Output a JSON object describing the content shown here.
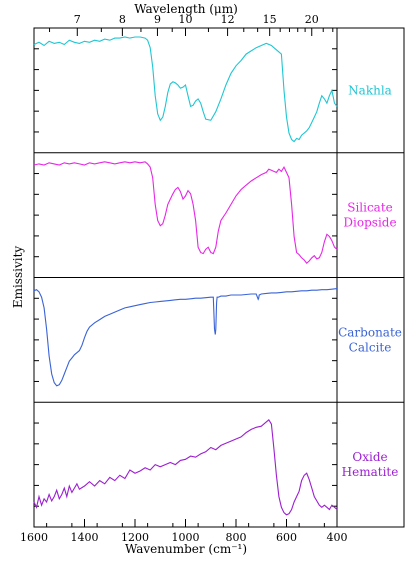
{
  "chart_data": {
    "type": "line",
    "title": "",
    "xlabel": "Wavenumber (cm⁻¹)",
    "ylabel": "Emissivity",
    "top_axis_label": "Wavelength (μm)",
    "xlim": [
      1600,
      400
    ],
    "x_ticks": [
      1600,
      1400,
      1200,
      1000,
      800,
      600,
      400
    ],
    "x_tick_labels": [
      "1600",
      "1400",
      "1200",
      "1000",
      "800",
      "600",
      "400"
    ],
    "top_ticks_um": [
      7,
      8,
      9,
      10,
      12,
      15,
      20
    ],
    "top_tick_labels": [
      "7",
      "8",
      "9",
      "10",
      "12",
      "15",
      "20"
    ],
    "grid": false,
    "legend": "right column labels",
    "series": [
      {
        "name": "Nakhla",
        "label_lines": [
          "Nakhla"
        ],
        "color": "#1fc6d3",
        "x": [
          1600,
          1580,
          1560,
          1540,
          1520,
          1500,
          1480,
          1460,
          1440,
          1420,
          1400,
          1380,
          1360,
          1340,
          1320,
          1300,
          1280,
          1260,
          1240,
          1220,
          1200,
          1180,
          1160,
          1150,
          1140,
          1130,
          1120,
          1110,
          1100,
          1090,
          1080,
          1070,
          1060,
          1050,
          1040,
          1030,
          1020,
          1010,
          1000,
          990,
          980,
          970,
          960,
          950,
          940,
          930,
          920,
          900,
          880,
          860,
          840,
          820,
          800,
          780,
          760,
          740,
          720,
          700,
          680,
          660,
          650,
          640,
          630,
          620,
          610,
          600,
          590,
          580,
          570,
          560,
          550,
          540,
          530,
          520,
          510,
          500,
          490,
          480,
          470,
          460,
          450,
          440,
          430,
          420,
          410,
          400
        ],
        "values": [
          0.93,
          0.95,
          0.92,
          0.96,
          0.94,
          0.95,
          0.93,
          0.97,
          0.95,
          0.94,
          0.96,
          0.95,
          0.97,
          0.96,
          0.98,
          0.97,
          0.99,
          0.99,
          1.0,
          0.99,
          1.0,
          1.0,
          0.99,
          0.97,
          0.9,
          0.72,
          0.45,
          0.28,
          0.22,
          0.25,
          0.35,
          0.48,
          0.56,
          0.58,
          0.57,
          0.55,
          0.52,
          0.53,
          0.55,
          0.45,
          0.35,
          0.36,
          0.4,
          0.42,
          0.38,
          0.3,
          0.23,
          0.22,
          0.3,
          0.42,
          0.55,
          0.66,
          0.73,
          0.78,
          0.84,
          0.87,
          0.9,
          0.92,
          0.94,
          0.92,
          0.9,
          0.88,
          0.86,
          0.84,
          0.5,
          0.25,
          0.1,
          0.04,
          0.02,
          0.05,
          0.04,
          0.08,
          0.1,
          0.12,
          0.15,
          0.2,
          0.25,
          0.3,
          0.38,
          0.45,
          0.42,
          0.38,
          0.45,
          0.5,
          0.38,
          0.35
        ],
        "ylim": [
          0,
          1
        ]
      },
      {
        "name": "Silicate Diopside",
        "label_lines": [
          "Silicate",
          "Diopside"
        ],
        "color": "#e627e6",
        "x": [
          1600,
          1580,
          1560,
          1540,
          1520,
          1500,
          1480,
          1460,
          1440,
          1420,
          1400,
          1380,
          1360,
          1340,
          1320,
          1300,
          1280,
          1260,
          1240,
          1220,
          1200,
          1180,
          1160,
          1150,
          1140,
          1130,
          1120,
          1110,
          1100,
          1090,
          1080,
          1070,
          1060,
          1050,
          1040,
          1030,
          1020,
          1010,
          1000,
          990,
          980,
          970,
          960,
          950,
          940,
          930,
          920,
          910,
          900,
          890,
          880,
          870,
          860,
          840,
          820,
          800,
          780,
          760,
          740,
          720,
          700,
          680,
          670,
          660,
          650,
          640,
          630,
          620,
          610,
          600,
          590,
          580,
          570,
          560,
          550,
          540,
          530,
          520,
          510,
          500,
          490,
          480,
          470,
          460,
          450,
          440,
          430,
          420,
          410,
          400
        ],
        "values": [
          0.97,
          0.98,
          0.97,
          0.99,
          0.98,
          0.97,
          0.99,
          0.98,
          0.99,
          0.98,
          0.97,
          0.99,
          0.98,
          0.99,
          1.0,
          0.99,
          0.98,
          0.99,
          1.0,
          0.99,
          1.0,
          0.99,
          1.0,
          0.98,
          0.95,
          0.85,
          0.6,
          0.45,
          0.4,
          0.42,
          0.5,
          0.6,
          0.65,
          0.7,
          0.74,
          0.76,
          0.72,
          0.65,
          0.68,
          0.73,
          0.7,
          0.6,
          0.45,
          0.2,
          0.15,
          0.14,
          0.18,
          0.2,
          0.15,
          0.14,
          0.2,
          0.35,
          0.45,
          0.52,
          0.6,
          0.68,
          0.74,
          0.78,
          0.82,
          0.85,
          0.88,
          0.9,
          0.93,
          0.92,
          0.91,
          0.9,
          0.93,
          0.91,
          0.95,
          0.9,
          0.85,
          0.6,
          0.3,
          0.15,
          0.13,
          0.1,
          0.08,
          0.05,
          0.07,
          0.1,
          0.12,
          0.09,
          0.1,
          0.15,
          0.25,
          0.32,
          0.3,
          0.26,
          0.2,
          0.18
        ],
        "ylim": [
          0,
          1
        ]
      },
      {
        "name": "Carbonate Calcite",
        "label_lines": [
          "Carbonate",
          "Calcite"
        ],
        "color": "#3a63d6",
        "x": [
          1600,
          1590,
          1580,
          1570,
          1560,
          1550,
          1540,
          1530,
          1520,
          1510,
          1500,
          1490,
          1480,
          1470,
          1460,
          1450,
          1440,
          1430,
          1420,
          1410,
          1400,
          1390,
          1380,
          1360,
          1340,
          1320,
          1300,
          1280,
          1260,
          1240,
          1220,
          1200,
          1180,
          1160,
          1140,
          1120,
          1100,
          1080,
          1060,
          1040,
          1020,
          1000,
          980,
          960,
          940,
          920,
          900,
          890,
          885,
          882,
          880,
          877,
          875,
          870,
          860,
          840,
          820,
          800,
          780,
          760,
          740,
          720,
          712,
          710,
          708,
          700,
          680,
          660,
          640,
          620,
          600,
          580,
          560,
          540,
          520,
          500,
          480,
          460,
          440,
          420,
          400
        ],
        "values": [
          0.96,
          0.97,
          0.95,
          0.9,
          0.8,
          0.6,
          0.35,
          0.18,
          0.1,
          0.07,
          0.08,
          0.12,
          0.18,
          0.24,
          0.3,
          0.33,
          0.36,
          0.38,
          0.4,
          0.45,
          0.52,
          0.58,
          0.62,
          0.66,
          0.69,
          0.72,
          0.74,
          0.76,
          0.78,
          0.8,
          0.81,
          0.82,
          0.83,
          0.84,
          0.85,
          0.855,
          0.86,
          0.865,
          0.87,
          0.875,
          0.88,
          0.88,
          0.885,
          0.89,
          0.89,
          0.895,
          0.9,
          0.9,
          0.6,
          0.55,
          0.6,
          0.85,
          0.9,
          0.9,
          0.91,
          0.91,
          0.92,
          0.92,
          0.92,
          0.925,
          0.93,
          0.93,
          0.88,
          0.89,
          0.92,
          0.93,
          0.935,
          0.94,
          0.94,
          0.945,
          0.95,
          0.95,
          0.955,
          0.96,
          0.96,
          0.965,
          0.965,
          0.97,
          0.97,
          0.975,
          0.98
        ],
        "ylim": [
          0,
          1
        ]
      },
      {
        "name": "Oxide Hematite",
        "label_lines": [
          "Oxide",
          "Hematite"
        ],
        "color": "#9b1fd0",
        "x": [
          1600,
          1590,
          1580,
          1570,
          1560,
          1550,
          1540,
          1530,
          1520,
          1510,
          1500,
          1490,
          1480,
          1470,
          1460,
          1450,
          1440,
          1430,
          1420,
          1400,
          1380,
          1360,
          1340,
          1320,
          1300,
          1280,
          1260,
          1240,
          1220,
          1200,
          1180,
          1160,
          1140,
          1120,
          1100,
          1080,
          1060,
          1040,
          1020,
          1000,
          980,
          960,
          940,
          920,
          900,
          880,
          860,
          840,
          820,
          800,
          780,
          760,
          740,
          720,
          700,
          690,
          680,
          670,
          660,
          650,
          640,
          630,
          620,
          610,
          600,
          590,
          580,
          570,
          560,
          550,
          540,
          530,
          520,
          510,
          500,
          490,
          480,
          470,
          460,
          450,
          440,
          430,
          420,
          410,
          400
        ],
        "values": [
          0.15,
          0.1,
          0.2,
          0.12,
          0.18,
          0.15,
          0.22,
          0.16,
          0.2,
          0.26,
          0.18,
          0.22,
          0.28,
          0.2,
          0.3,
          0.24,
          0.28,
          0.32,
          0.27,
          0.3,
          0.34,
          0.3,
          0.35,
          0.32,
          0.38,
          0.35,
          0.4,
          0.37,
          0.45,
          0.42,
          0.44,
          0.47,
          0.45,
          0.5,
          0.48,
          0.5,
          0.52,
          0.5,
          0.54,
          0.55,
          0.58,
          0.57,
          0.6,
          0.62,
          0.66,
          0.64,
          0.68,
          0.7,
          0.72,
          0.74,
          0.76,
          0.8,
          0.83,
          0.85,
          0.86,
          0.88,
          0.9,
          0.92,
          0.88,
          0.65,
          0.4,
          0.2,
          0.1,
          0.05,
          0.03,
          0.04,
          0.08,
          0.15,
          0.2,
          0.25,
          0.35,
          0.4,
          0.42,
          0.36,
          0.28,
          0.2,
          0.16,
          0.12,
          0.1,
          0.12,
          0.1,
          0.08,
          0.12,
          0.1,
          0.08
        ],
        "ylim": [
          0,
          1
        ]
      }
    ]
  }
}
